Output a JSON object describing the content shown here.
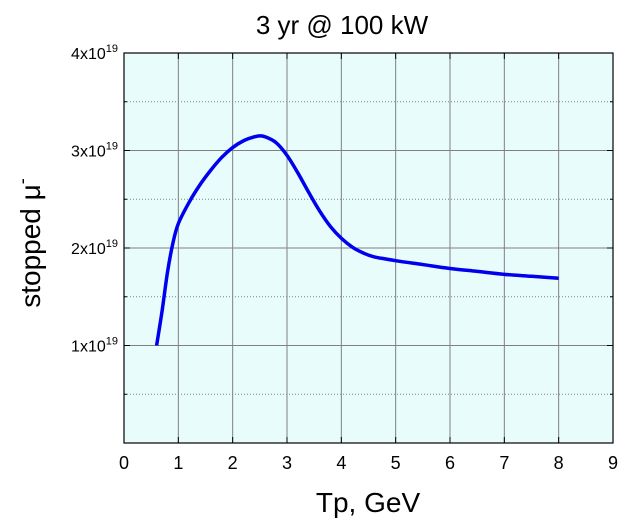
{
  "chart_data": {
    "type": "line",
    "title": "3 yr @ 100 kW",
    "xlabel": "Tp, GeV",
    "ylabel": "stopped μ",
    "ylabel_superscript": "-",
    "xlim": [
      0,
      9
    ],
    "ylim": [
      0,
      4e+19
    ],
    "grid": true,
    "x_ticks": [
      "0",
      "1",
      "2",
      "3",
      "4",
      "5",
      "6",
      "7",
      "8",
      "9"
    ],
    "y_ticks": [
      {
        "value": 1e+19,
        "base": "1x10",
        "exp": "19"
      },
      {
        "value": 2e+19,
        "base": "2x10",
        "exp": "19"
      },
      {
        "value": 3e+19,
        "base": "3x10",
        "exp": "19"
      },
      {
        "value": 4e+19,
        "base": "4x10",
        "exp": "19"
      }
    ],
    "series": [
      {
        "color": "#0000ee",
        "x": [
          0.6,
          0.7,
          0.8,
          0.9,
          1.0,
          1.2,
          1.4,
          1.6,
          1.8,
          2.0,
          2.2,
          2.4,
          2.5,
          2.6,
          2.8,
          3.0,
          3.2,
          3.4,
          3.6,
          3.8,
          4.0,
          4.2,
          4.4,
          4.6,
          5.0,
          5.5,
          6.0,
          6.5,
          7.0,
          7.5,
          8.0
        ],
        "y": [
          1e+19,
          1.35e+19,
          1.75e+19,
          2.05e+19,
          2.25e+19,
          2.47e+19,
          2.65e+19,
          2.8e+19,
          2.93e+19,
          3.03e+19,
          3.1e+19,
          3.14e+19,
          3.15e+19,
          3.14e+19,
          3.08e+19,
          2.95e+19,
          2.77e+19,
          2.57e+19,
          2.38e+19,
          2.22e+19,
          2.1e+19,
          2.01e+19,
          1.95e+19,
          1.91e+19,
          1.87e+19,
          1.83e+19,
          1.79e+19,
          1.76e+19,
          1.73e+19,
          1.71e+19,
          1.69e+19
        ]
      }
    ],
    "colors": {
      "plot_background": "#e8fcfc",
      "grid": "#808080",
      "line": "#0000ee",
      "axis": "#000000"
    }
  }
}
